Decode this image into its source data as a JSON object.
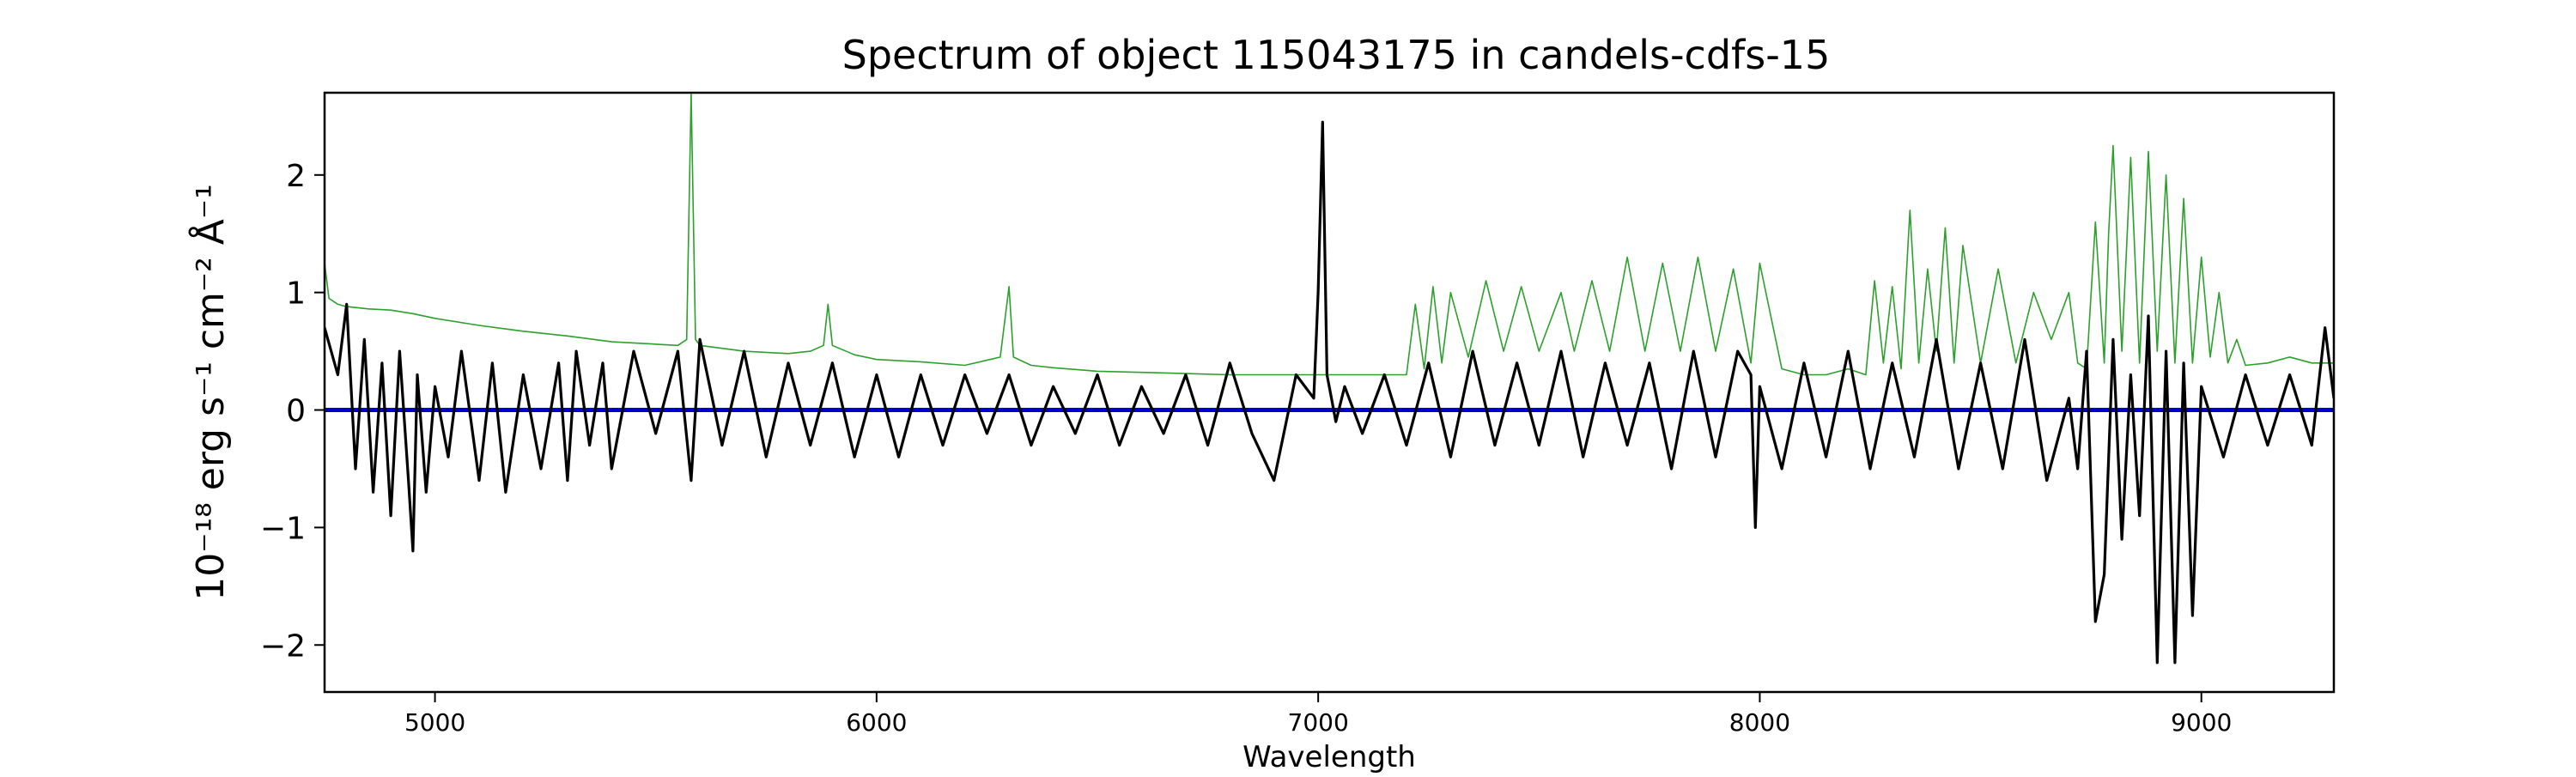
{
  "chart_data": {
    "type": "line",
    "title": "Spectrum of object 115043175 in candels-cdfs-15",
    "xlabel": "Wavelength",
    "ylabel": "10⁻¹⁸ erg s⁻¹ cm⁻² Å⁻¹",
    "xlim": [
      4750,
      9300
    ],
    "ylim": [
      -2.4,
      2.7
    ],
    "xticks": [
      5000,
      6000,
      7000,
      8000,
      9000
    ],
    "xtick_labels": [
      "5000",
      "6000",
      "7000",
      "8000",
      "9000"
    ],
    "yticks": [
      -2,
      -1,
      0,
      1,
      2
    ],
    "ytick_labels": [
      "−2",
      "−1",
      "0",
      "1",
      "2"
    ],
    "grid": false,
    "colors": {
      "flux": "#000000",
      "noise": "#2ca02c",
      "zero": "#0000cc"
    },
    "series": [
      {
        "role": "flux",
        "x": [
          4750,
          4780,
          4800,
          4820,
          4840,
          4860,
          4880,
          4900,
          4920,
          4940,
          4950,
          4960,
          4980,
          5000,
          5030,
          5060,
          5100,
          5130,
          5160,
          5200,
          5240,
          5280,
          5300,
          5320,
          5350,
          5380,
          5400,
          5450,
          5500,
          5550,
          5580,
          5600,
          5650,
          5700,
          5750,
          5800,
          5850,
          5900,
          5950,
          6000,
          6050,
          6100,
          6150,
          6200,
          6250,
          6300,
          6350,
          6400,
          6450,
          6500,
          6550,
          6600,
          6650,
          6700,
          6750,
          6800,
          6850,
          6900,
          6950,
          6990,
          7000,
          7010,
          7020,
          7030,
          7040,
          7060,
          7100,
          7150,
          7200,
          7250,
          7300,
          7350,
          7400,
          7450,
          7500,
          7550,
          7600,
          7650,
          7700,
          7750,
          7800,
          7850,
          7900,
          7950,
          7980,
          7990,
          8000,
          8050,
          8100,
          8150,
          8200,
          8250,
          8300,
          8350,
          8400,
          8450,
          8500,
          8550,
          8600,
          8650,
          8700,
          8720,
          8740,
          8760,
          8780,
          8800,
          8820,
          8840,
          8860,
          8880,
          8900,
          8920,
          8940,
          8960,
          8980,
          9000,
          9050,
          9100,
          9150,
          9200,
          9250,
          9280,
          9300
        ],
        "y": [
          0.7,
          0.3,
          0.9,
          -0.5,
          0.6,
          -0.7,
          0.4,
          -0.9,
          0.5,
          -0.6,
          -1.2,
          0.3,
          -0.7,
          0.2,
          -0.4,
          0.5,
          -0.6,
          0.4,
          -0.7,
          0.3,
          -0.5,
          0.4,
          -0.6,
          0.5,
          -0.3,
          0.4,
          -0.5,
          0.5,
          -0.2,
          0.5,
          -0.6,
          0.6,
          -0.3,
          0.5,
          -0.4,
          0.4,
          -0.3,
          0.4,
          -0.4,
          0.3,
          -0.4,
          0.3,
          -0.3,
          0.3,
          -0.2,
          0.3,
          -0.3,
          0.2,
          -0.2,
          0.3,
          -0.3,
          0.2,
          -0.2,
          0.3,
          -0.3,
          0.4,
          -0.2,
          -0.6,
          0.3,
          0.1,
          1.0,
          2.45,
          0.3,
          0.1,
          -0.1,
          0.2,
          -0.2,
          0.3,
          -0.3,
          0.4,
          -0.4,
          0.5,
          -0.3,
          0.4,
          -0.3,
          0.5,
          -0.4,
          0.4,
          -0.3,
          0.4,
          -0.5,
          0.5,
          -0.4,
          0.5,
          0.3,
          -1.0,
          0.2,
          -0.5,
          0.4,
          -0.4,
          0.5,
          -0.5,
          0.4,
          -0.4,
          0.6,
          -0.5,
          0.4,
          -0.5,
          0.6,
          -0.6,
          0.1,
          -0.5,
          0.5,
          -1.8,
          -1.4,
          0.6,
          -1.1,
          0.3,
          -0.9,
          0.8,
          -2.15,
          0.5,
          -2.15,
          0.4,
          -1.75,
          0.2,
          -0.4,
          0.3,
          -0.3,
          0.3,
          -0.3,
          0.7,
          0.1
        ]
      },
      {
        "role": "noise",
        "x": [
          4750,
          4760,
          4780,
          4800,
          4850,
          4900,
          4950,
          5000,
          5100,
          5200,
          5300,
          5400,
          5500,
          5550,
          5570,
          5580,
          5590,
          5600,
          5700,
          5800,
          5850,
          5880,
          5890,
          5900,
          5950,
          6000,
          6100,
          6200,
          6280,
          6300,
          6310,
          6350,
          6400,
          6500,
          6600,
          6700,
          6800,
          6900,
          7000,
          7100,
          7200,
          7220,
          7240,
          7260,
          7280,
          7300,
          7340,
          7380,
          7420,
          7460,
          7500,
          7550,
          7580,
          7620,
          7660,
          7700,
          7740,
          7780,
          7820,
          7860,
          7900,
          7940,
          7980,
          8000,
          8050,
          8100,
          8150,
          8200,
          8240,
          8260,
          8280,
          8300,
          8320,
          8340,
          8360,
          8380,
          8400,
          8420,
          8440,
          8460,
          8500,
          8540,
          8580,
          8620,
          8660,
          8700,
          8720,
          8740,
          8760,
          8780,
          8790,
          8800,
          8820,
          8840,
          8860,
          8880,
          8900,
          8920,
          8940,
          8960,
          8980,
          9000,
          9020,
          9040,
          9060,
          9080,
          9100,
          9150,
          9200,
          9250,
          9300
        ],
        "y": [
          1.25,
          0.95,
          0.9,
          0.88,
          0.86,
          0.85,
          0.82,
          0.78,
          0.72,
          0.67,
          0.63,
          0.58,
          0.56,
          0.55,
          0.6,
          2.7,
          0.6,
          0.55,
          0.5,
          0.48,
          0.5,
          0.55,
          0.9,
          0.55,
          0.47,
          0.43,
          0.41,
          0.38,
          0.45,
          1.05,
          0.45,
          0.38,
          0.36,
          0.33,
          0.32,
          0.31,
          0.3,
          0.3,
          0.3,
          0.3,
          0.3,
          0.9,
          0.35,
          1.05,
          0.4,
          1.0,
          0.45,
          1.1,
          0.5,
          1.05,
          0.5,
          1.0,
          0.5,
          1.1,
          0.5,
          1.3,
          0.5,
          1.25,
          0.5,
          1.3,
          0.5,
          1.2,
          0.4,
          1.25,
          0.35,
          0.3,
          0.3,
          0.35,
          0.3,
          1.1,
          0.4,
          1.05,
          0.35,
          1.7,
          0.4,
          1.2,
          0.5,
          1.55,
          0.4,
          1.4,
          0.4,
          1.2,
          0.4,
          1.0,
          0.6,
          1.0,
          0.4,
          0.35,
          1.6,
          0.4,
          1.5,
          2.25,
          0.5,
          2.15,
          0.4,
          2.2,
          0.5,
          2.0,
          0.4,
          1.8,
          0.4,
          1.3,
          0.45,
          1.0,
          0.4,
          0.6,
          0.38,
          0.4,
          0.45,
          0.4,
          0.4
        ]
      },
      {
        "role": "zero",
        "x": [
          4750,
          9300
        ],
        "y": [
          0,
          0
        ]
      }
    ]
  }
}
